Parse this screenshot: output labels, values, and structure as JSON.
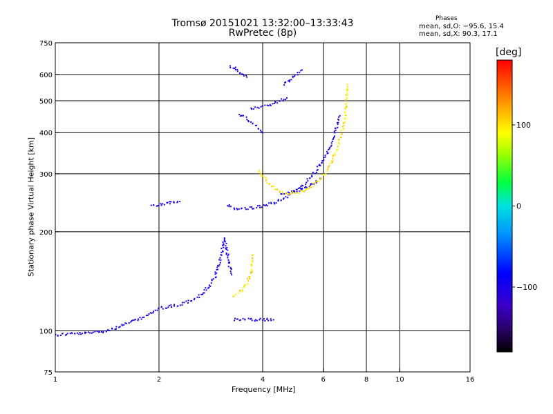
{
  "header": {
    "title": "Tromsø 20151021 13:32:00–13:33:43",
    "subtitle": "RwPretec (8p)"
  },
  "phases": {
    "title": "Phases",
    "o_line": "mean, sd,O: −95.6, 15.4",
    "x_line": "mean, sd,X:  90.3, 17.1"
  },
  "colorbar": {
    "unit": "[deg]",
    "ticks": [
      {
        "label": "100",
        "value": 100
      },
      {
        "label": "0",
        "value": 0
      },
      {
        "label": "−100",
        "value": -100
      }
    ],
    "range": [
      -180,
      180
    ]
  },
  "chart_data": {
    "type": "scatter",
    "xlabel": "Frequency [MHz]",
    "ylabel": "Stationary phase Virtual Height [km]",
    "x_scale": "log",
    "y_scale": "log",
    "xlim": [
      1,
      16
    ],
    "ylim": [
      75,
      750
    ],
    "x_ticks": [
      1,
      2,
      4,
      6,
      8,
      10,
      16
    ],
    "y_ticks": [
      75,
      100,
      200,
      300,
      400,
      500,
      600,
      750
    ],
    "x_gridlines": [
      2,
      4,
      6,
      8,
      10
    ],
    "y_gridlines": [
      100,
      200,
      300,
      400,
      500,
      600
    ],
    "series": [
      {
        "name": "O",
        "color_phase_deg": -100,
        "traces": [
          {
            "x": [
              1.0,
              1.1,
              1.2,
              1.3,
              1.4,
              1.5,
              1.6,
              1.7,
              1.8,
              1.9,
              2.0,
              2.1,
              2.2,
              2.3,
              2.4,
              2.5,
              2.6,
              2.7,
              2.8,
              2.9,
              3.0,
              3.05,
              3.1
            ],
            "y": [
              97,
              98,
              98,
              99,
              100,
              102,
              105,
              107,
              110,
              113,
              117,
              118,
              119,
              120,
              122,
              124,
              127,
              131,
              137,
              145,
              160,
              175,
              190
            ]
          },
          {
            "x": [
              3.1,
              3.15,
              3.2,
              3.25
            ],
            "y": [
              190,
              175,
              160,
              148
            ]
          },
          {
            "x": [
              3.15,
              3.25,
              3.35,
              3.5,
              3.7,
              3.9,
              4.1,
              4.3,
              4.5,
              4.7,
              4.9,
              5.1,
              5.3,
              5.5,
              5.7,
              5.9,
              6.1,
              6.3,
              6.5,
              6.7
            ],
            "y": [
              240,
              237,
              235,
              235,
              236,
              238,
              241,
              245,
              250,
              256,
              263,
              270,
              280,
              292,
              305,
              320,
              340,
              365,
              400,
              450
            ]
          },
          {
            "x": [
              4.5,
              4.8,
              5.1,
              5.4,
              5.7,
              5.9
            ],
            "y": [
              260,
              263,
              268,
              274,
              282,
              290
            ]
          },
          {
            "x": [
              3.2,
              3.3,
              3.4,
              3.5,
              3.6
            ],
            "y": [
              640,
              630,
              615,
              600,
              590
            ]
          },
          {
            "x": [
              3.4,
              3.5,
              3.6,
              3.7,
              3.8,
              3.9,
              4.0
            ],
            "y": [
              455,
              450,
              440,
              430,
              420,
              410,
              400
            ]
          },
          {
            "x": [
              3.7,
              3.9,
              4.1,
              4.3,
              4.5,
              4.7
            ],
            "y": [
              475,
              478,
              483,
              490,
              500,
              510
            ]
          },
          {
            "x": [
              4.6,
              4.8,
              5.0,
              5.2
            ],
            "y": [
              560,
              580,
              600,
              620
            ]
          },
          {
            "x": [
              1.9,
              2.0,
              2.1,
              2.2,
              2.3
            ],
            "y": [
              240,
              242,
              244,
              245,
              247
            ]
          },
          {
            "x": [
              3.3,
              3.5,
              3.7,
              3.9,
              4.1,
              4.3
            ],
            "y": [
              108,
              108,
              108,
              108,
              108,
              108
            ]
          }
        ]
      },
      {
        "name": "X",
        "color_phase_deg": 100,
        "traces": [
          {
            "x": [
              3.3,
              3.4,
              3.5,
              3.6,
              3.7,
              3.75
            ],
            "y": [
              128,
              130,
              133,
              140,
              150,
              170
            ]
          },
          {
            "x": [
              3.9,
              4.1,
              4.3,
              4.5,
              4.7,
              4.9,
              5.1,
              5.3,
              5.5,
              5.7,
              5.9,
              6.1,
              6.3,
              6.5,
              6.7,
              6.9,
              7.0,
              7.05
            ],
            "y": [
              310,
              285,
              272,
              265,
              262,
              262,
              264,
              268,
              273,
              280,
              290,
              302,
              320,
              345,
              380,
              430,
              480,
              560
            ]
          }
        ]
      }
    ]
  }
}
